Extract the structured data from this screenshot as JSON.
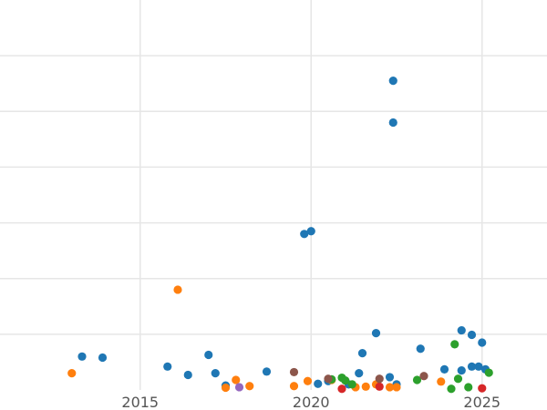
{
  "chart_data": {
    "type": "scatter",
    "title": "",
    "xlabel": "",
    "ylabel": "",
    "xlim": [
      2010.9,
      2026.9
    ],
    "ylim": [
      0,
      7
    ],
    "x_ticks": [
      2015,
      2020,
      2025
    ],
    "x_tick_labels": [
      "2015",
      "2020",
      "2025"
    ],
    "y_gridlines": [
      1,
      2,
      3,
      4,
      5,
      6
    ],
    "grid": true,
    "legend": "none",
    "series": [
      {
        "color": "#1f77b4",
        "points": [
          [
            2013.3,
            0.6
          ],
          [
            2013.9,
            0.58
          ],
          [
            2015.8,
            0.42
          ],
          [
            2016.4,
            0.27
          ],
          [
            2017.0,
            0.63
          ],
          [
            2017.2,
            0.3
          ],
          [
            2017.5,
            0.08
          ],
          [
            2018.7,
            0.33
          ],
          [
            2019.8,
            2.8
          ],
          [
            2020.0,
            2.85
          ],
          [
            2020.2,
            0.11
          ],
          [
            2020.5,
            0.16
          ],
          [
            2021.1,
            0.1
          ],
          [
            2021.4,
            0.3
          ],
          [
            2021.5,
            0.66
          ],
          [
            2021.9,
            1.02
          ],
          [
            2022.3,
            0.23
          ],
          [
            2022.4,
            4.8
          ],
          [
            2022.4,
            5.55
          ],
          [
            2022.5,
            0.1
          ],
          [
            2023.2,
            0.74
          ],
          [
            2023.9,
            0.37
          ],
          [
            2024.4,
            0.35
          ],
          [
            2024.4,
            1.07
          ],
          [
            2024.7,
            0.99
          ],
          [
            2024.7,
            0.42
          ],
          [
            2024.9,
            0.42
          ],
          [
            2025.0,
            0.85
          ],
          [
            2025.1,
            0.37
          ]
        ]
      },
      {
        "color": "#ff7f0e",
        "points": [
          [
            2013.0,
            0.3
          ],
          [
            2016.1,
            1.8
          ],
          [
            2017.5,
            0.04
          ],
          [
            2017.8,
            0.18
          ],
          [
            2018.2,
            0.07
          ],
          [
            2019.5,
            0.07
          ],
          [
            2019.9,
            0.16
          ],
          [
            2020.6,
            0.18
          ],
          [
            2021.3,
            0.05
          ],
          [
            2021.6,
            0.06
          ],
          [
            2021.9,
            0.1
          ],
          [
            2022.3,
            0.05
          ],
          [
            2022.5,
            0.05
          ],
          [
            2023.8,
            0.15
          ]
        ]
      },
      {
        "color": "#2ca02c",
        "points": [
          [
            2020.6,
            0.19
          ],
          [
            2020.9,
            0.22
          ],
          [
            2021.0,
            0.17
          ],
          [
            2021.2,
            0.1
          ],
          [
            2023.1,
            0.18
          ],
          [
            2024.2,
            0.82
          ],
          [
            2024.1,
            0.02
          ],
          [
            2024.3,
            0.2
          ],
          [
            2024.6,
            0.05
          ],
          [
            2025.2,
            0.31
          ]
        ]
      },
      {
        "color": "#d62728",
        "points": [
          [
            2020.9,
            0.02
          ],
          [
            2022.0,
            0.06
          ],
          [
            2025.0,
            0.03
          ]
        ]
      },
      {
        "color": "#9467bd",
        "points": [
          [
            2017.9,
            0.05
          ]
        ]
      },
      {
        "color": "#8c564b",
        "points": [
          [
            2019.5,
            0.32
          ],
          [
            2020.5,
            0.2
          ],
          [
            2022.0,
            0.2
          ],
          [
            2023.3,
            0.25
          ]
        ]
      }
    ]
  }
}
